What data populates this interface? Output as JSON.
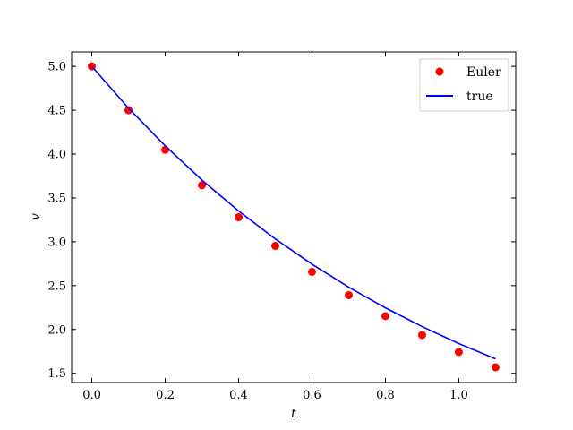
{
  "chart_data": {
    "type": "scatter",
    "title": "",
    "xlabel": "t",
    "ylabel": "v",
    "xlim": [
      -0.055,
      1.155
    ],
    "ylim": [
      1.395,
      5.165
    ],
    "xticks": [
      0.0,
      0.2,
      0.4,
      0.6,
      0.8,
      1.0
    ],
    "xtick_labels": [
      "0.0",
      "0.2",
      "0.4",
      "0.6",
      "0.8",
      "1.0"
    ],
    "yticks": [
      1.5,
      2.0,
      2.5,
      3.0,
      3.5,
      4.0,
      4.5,
      5.0
    ],
    "ytick_labels": [
      "1.5",
      "2.0",
      "2.5",
      "3.0",
      "3.5",
      "4.0",
      "4.5",
      "5.0"
    ],
    "grid": false,
    "legend_position": "top-right",
    "series": [
      {
        "name": "Euler",
        "kind": "scatter",
        "color": "#ff0000",
        "x": [
          0.0,
          0.1,
          0.2,
          0.3,
          0.4,
          0.5,
          0.6,
          0.7,
          0.8,
          0.9,
          1.0,
          1.1
        ],
        "y": [
          5.0,
          4.5,
          4.05,
          3.645,
          3.2805,
          2.9525,
          2.6572,
          2.3915,
          2.1523,
          1.9371,
          1.7434,
          1.5691
        ]
      },
      {
        "name": "true",
        "kind": "line",
        "color": "#0000ff",
        "x": [
          0.0,
          0.1,
          0.2,
          0.3,
          0.4,
          0.5,
          0.6,
          0.7,
          0.8,
          0.9,
          1.0,
          1.1
        ],
        "y": [
          5.0,
          4.5242,
          4.0937,
          3.7041,
          3.3516,
          3.0327,
          2.7441,
          2.4829,
          2.2466,
          2.0328,
          1.8394,
          1.6644
        ]
      }
    ]
  }
}
